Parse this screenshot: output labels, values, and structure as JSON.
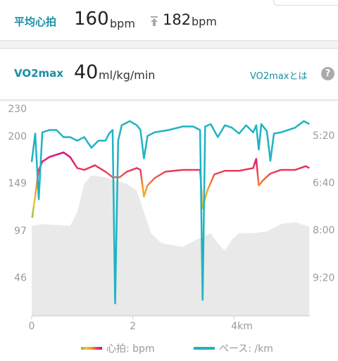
{
  "header": {
    "avg_hr_label": "平均心拍",
    "avg_hr": 160,
    "avg_hr_unit": "bpm",
    "max_hr": 182,
    "max_hr_unit": "bpm"
  },
  "vo2": {
    "label": "VO2max",
    "value": 40,
    "unit": "ml/kg/min",
    "link": "VO2maxとは",
    "help": "?"
  },
  "chart_data": {
    "type": "line",
    "xlim": [
      0,
      5.5
    ],
    "xticks": [
      0,
      2,
      {
        "value": 4,
        "label": "4km"
      }
    ],
    "ylim": [
      5,
      230
    ],
    "yticks": [
      46,
      97,
      149,
      200,
      230
    ],
    "y2lim": [
      624,
      275
    ],
    "y2ticks": [
      {
        "value": 320,
        "label": "5:20"
      },
      {
        "value": 400,
        "label": "6:40"
      },
      {
        "value": 480,
        "label": "8:00"
      },
      {
        "value": 560,
        "label": "9:20"
      }
    ],
    "grid": false,
    "series": [
      {
        "name": "心拍: bpm",
        "colors": [
          "#7dc242",
          "#f2c12e",
          "#f29a2e",
          "#ec3c5a",
          "#d8127f"
        ],
        "x": [
          0.01,
          0.14,
          0.21,
          0.35,
          0.63,
          0.76,
          0.9,
          1.04,
          1.25,
          1.46,
          1.6,
          1.74,
          1.88,
          2.08,
          2.15,
          2.22,
          2.29,
          2.43,
          2.64,
          2.99,
          3.33,
          3.38,
          3.47,
          3.61,
          3.82,
          4.1,
          4.38,
          4.44,
          4.49,
          4.58,
          4.72,
          4.93,
          5.21,
          5.42,
          5.49
        ],
        "values": [
          112,
          164,
          173,
          178,
          183,
          178,
          166,
          164,
          169,
          162,
          156,
          156,
          162,
          166,
          164,
          135,
          147,
          155,
          162,
          164,
          164,
          122,
          141,
          159,
          163,
          163,
          166,
          176,
          147,
          153,
          160,
          164,
          164,
          168,
          166
        ]
      },
      {
        "name": "ペース: /km",
        "color": "#1fb3c3",
        "axis": "y2",
        "x": [
          0,
          0.07,
          0.14,
          0.21,
          0.35,
          0.49,
          0.63,
          0.76,
          0.9,
          1.04,
          1.18,
          1.32,
          1.46,
          1.53,
          1.6,
          1.65,
          1.71,
          1.78,
          1.94,
          2.08,
          2.15,
          2.22,
          2.29,
          2.43,
          2.71,
          2.99,
          3.19,
          3.33,
          3.38,
          3.43,
          3.54,
          3.68,
          3.82,
          3.96,
          4.1,
          4.24,
          4.38,
          4.44,
          4.49,
          4.54,
          4.65,
          4.72,
          4.79,
          4.93,
          5.21,
          5.38,
          5.49
        ],
        "values": [
          364,
          316,
          427,
          314,
          310,
          310,
          322,
          322,
          328,
          322,
          340,
          328,
          328,
          316,
          310,
          603,
          328,
          302,
          295,
          302,
          310,
          358,
          320,
          314,
          310,
          304,
          304,
          310,
          597,
          304,
          300,
          322,
          302,
          306,
          316,
          302,
          314,
          302,
          343,
          300,
          312,
          362,
          316,
          314,
          306,
          295,
          300
        ]
      }
    ],
    "area": {
      "color": "#e9e9e9",
      "x": [
        0,
        0.21,
        0.76,
        0.9,
        1.04,
        1.18,
        1.46,
        1.6,
        1.88,
        2.08,
        2.22,
        2.36,
        2.57,
        2.99,
        3.26,
        3.54,
        3.68,
        3.82,
        3.96,
        4.1,
        4.38,
        4.65,
        4.93,
        5.21,
        5.49
      ],
      "values": [
        103,
        105,
        103,
        118,
        149,
        158,
        156,
        153,
        149,
        141,
        118,
        95,
        84,
        80,
        88,
        95,
        84,
        76,
        88,
        95,
        95,
        97,
        105,
        107,
        102
      ]
    }
  }
}
